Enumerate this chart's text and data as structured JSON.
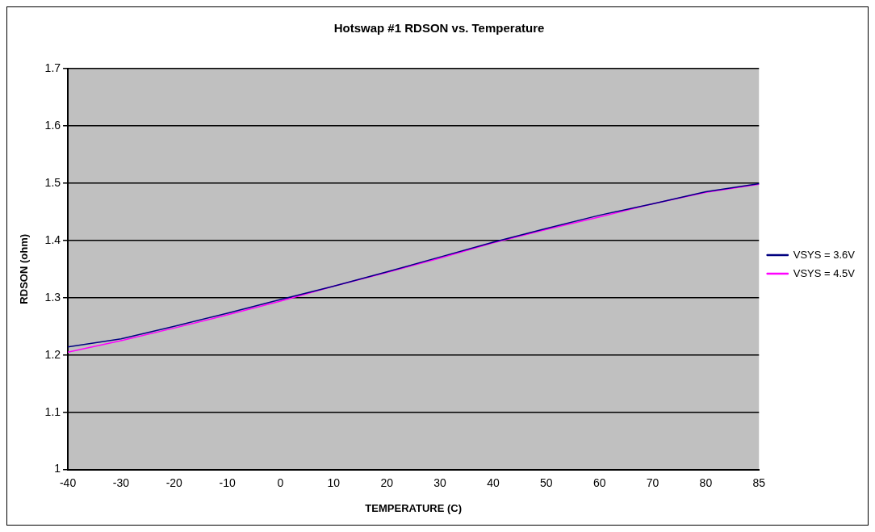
{
  "chart_data": {
    "type": "line",
    "title": "Hotswap #1 RDSON vs. Temperature",
    "xlabel": "TEMPERATURE (C)",
    "ylabel": "RDSON (ohm)",
    "categories": [
      "-40",
      "-30",
      "-20",
      "-10",
      "0",
      "10",
      "20",
      "30",
      "40",
      "50",
      "60",
      "70",
      "80",
      "85"
    ],
    "series": [
      {
        "name": "VSYS = 3.6V",
        "color": "#000080",
        "values": [
          1.214,
          1.228,
          1.25,
          1.273,
          1.297,
          1.32,
          1.345,
          1.371,
          1.397,
          1.421,
          1.444,
          1.464,
          1.485,
          1.499
        ]
      },
      {
        "name": "VSYS = 4.5V",
        "color": "#ff00ff",
        "values": [
          1.205,
          1.225,
          1.247,
          1.27,
          1.294,
          1.32,
          1.344,
          1.369,
          1.396,
          1.419,
          1.441,
          1.464,
          1.484,
          1.498
        ]
      }
    ],
    "ylim": [
      1,
      1.7
    ],
    "yticks": [
      1,
      1.1,
      1.2,
      1.3,
      1.4,
      1.5,
      1.6,
      1.7
    ],
    "grid": "y",
    "legend": "right",
    "marker": "none",
    "line_style": "solid"
  }
}
